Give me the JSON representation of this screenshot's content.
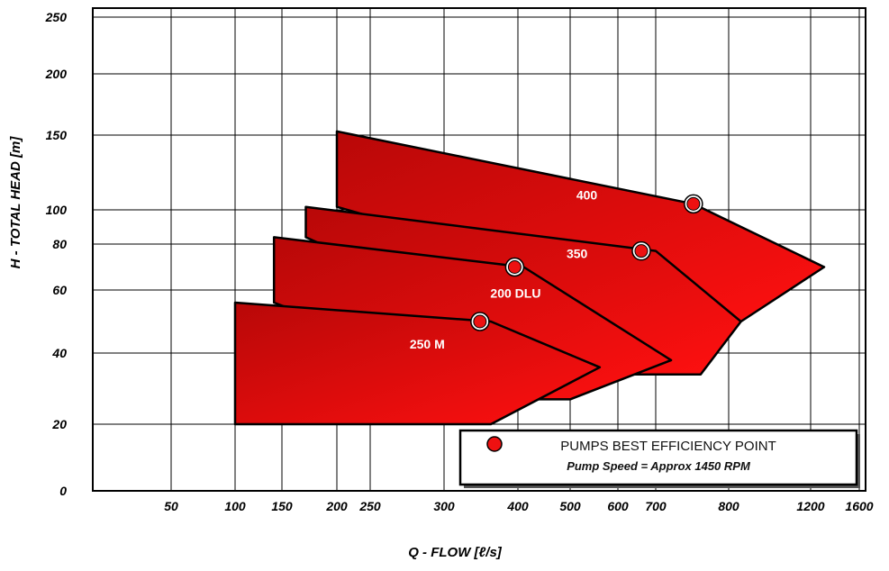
{
  "chart_data": {
    "type": "area",
    "title": "",
    "xlabel": "Q - FLOW [ℓ/s]",
    "ylabel": "H - TOTAL HEAD [m]",
    "x_scale": "log",
    "y_scale": "nonlinear",
    "x_ticks": [
      "50",
      "100",
      "150",
      "200",
      "250",
      "300",
      "400",
      "500",
      "600",
      "700",
      "800",
      "1200",
      "1600"
    ],
    "y_ticks": [
      "0",
      "20",
      "40",
      "60",
      "80",
      "100",
      "150",
      "200",
      "250"
    ],
    "grid": true,
    "series": [
      {
        "name": "250 M",
        "color": "#e01010",
        "outline": [
          [
            100,
            20
          ],
          [
            360,
            20
          ],
          [
            560,
            36
          ],
          [
            360,
            50
          ],
          [
            100,
            56
          ]
        ],
        "bep": [
          345,
          50
        ]
      },
      {
        "name": "200 DLU",
        "color": "#e01010",
        "outline": [
          [
            140,
            56
          ],
          [
            140,
            84
          ],
          [
            410,
            70
          ],
          [
            720,
            38
          ],
          [
            500,
            27
          ],
          [
            420,
            27
          ]
        ],
        "bep": [
          395,
          70
        ]
      },
      {
        "name": "350",
        "color": "#e01010",
        "outline": [
          [
            170,
            84
          ],
          [
            170,
            102
          ],
          [
            700,
            77
          ],
          [
            850,
            50
          ],
          [
            760,
            34
          ],
          [
            580,
            34
          ]
        ],
        "bep": [
          660,
          77
        ]
      },
      {
        "name": "400",
        "color": "#e01010",
        "outline": [
          [
            200,
            102
          ],
          [
            200,
            153
          ],
          [
            750,
            104
          ],
          [
            1300,
            70
          ],
          [
            850,
            50
          ]
        ],
        "bep": [
          750,
          104
        ]
      }
    ],
    "legend": {
      "placement": "bottom-right",
      "title": "PUMPS BEST EFFICIENCY POINT",
      "subtitle": "Pump Speed =  Approx  1450 RPM"
    }
  }
}
